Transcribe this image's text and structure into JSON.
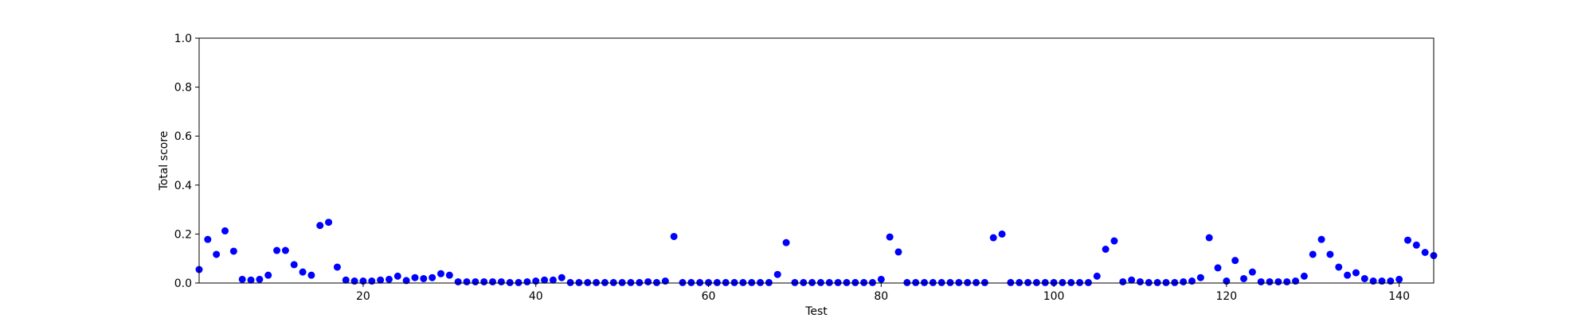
{
  "chart_data": {
    "type": "scatter",
    "title": "",
    "xlabel": "Test",
    "ylabel": "Total score",
    "xlim": [
      1,
      144
    ],
    "ylim": [
      0.0,
      1.0
    ],
    "xticks": [
      20,
      40,
      60,
      80,
      100,
      120,
      140
    ],
    "yticks": [
      0.0,
      0.2,
      0.4,
      0.6,
      0.8,
      1.0
    ],
    "xtick_labels": [
      "20",
      "40",
      "60",
      "80",
      "100",
      "120",
      "140"
    ],
    "ytick_labels": [
      "0.0",
      "0.2",
      "0.4",
      "0.6",
      "0.8",
      "1.0"
    ],
    "grid": false,
    "marker_color": "#0000ff",
    "series": [
      {
        "x": [
          1,
          2,
          3,
          4,
          5,
          6,
          7,
          8,
          9,
          10,
          11,
          12,
          13,
          14,
          15,
          16,
          17,
          18,
          19,
          20,
          21,
          22,
          23,
          24,
          25,
          26,
          27,
          28,
          29,
          30,
          31,
          32,
          33,
          34,
          35,
          36,
          37,
          38,
          39,
          40,
          41,
          42,
          43,
          44,
          45,
          46,
          47,
          48,
          49,
          50,
          51,
          52,
          53,
          54,
          55,
          56,
          57,
          58,
          59,
          60,
          61,
          62,
          63,
          64,
          65,
          66,
          67,
          68,
          69,
          70,
          71,
          72,
          73,
          74,
          75,
          76,
          77,
          78,
          79,
          80,
          81,
          82,
          83,
          84,
          85,
          86,
          87,
          88,
          89,
          90,
          91,
          92,
          93,
          94,
          95,
          96,
          97,
          98,
          99,
          100,
          101,
          102,
          103,
          104,
          105,
          106,
          107,
          108,
          109,
          110,
          111,
          112,
          113,
          114,
          115,
          116,
          117,
          118,
          119,
          120,
          121,
          122,
          123,
          124,
          125,
          126,
          127,
          128,
          129,
          130,
          131,
          132,
          133,
          134,
          135,
          136,
          137,
          138,
          139,
          140,
          141,
          142,
          143,
          144
        ],
        "y": [
          0.055,
          0.178,
          0.117,
          0.213,
          0.13,
          0.015,
          0.012,
          0.015,
          0.032,
          0.133,
          0.133,
          0.075,
          0.045,
          0.032,
          0.235,
          0.248,
          0.065,
          0.012,
          0.008,
          0.008,
          0.008,
          0.012,
          0.015,
          0.028,
          0.01,
          0.022,
          0.018,
          0.022,
          0.038,
          0.032,
          0.005,
          0.005,
          0.005,
          0.005,
          0.005,
          0.005,
          0.002,
          0.002,
          0.005,
          0.008,
          0.012,
          0.012,
          0.022,
          0.002,
          0.002,
          0.002,
          0.002,
          0.002,
          0.002,
          0.002,
          0.002,
          0.002,
          0.005,
          0.002,
          0.008,
          0.19,
          0.002,
          0.002,
          0.002,
          0.002,
          0.002,
          0.002,
          0.002,
          0.002,
          0.002,
          0.002,
          0.002,
          0.035,
          0.165,
          0.002,
          0.002,
          0.002,
          0.002,
          0.002,
          0.002,
          0.002,
          0.002,
          0.002,
          0.002,
          0.015,
          0.188,
          0.127,
          0.002,
          0.002,
          0.002,
          0.002,
          0.002,
          0.002,
          0.002,
          0.002,
          0.002,
          0.002,
          0.185,
          0.2,
          0.002,
          0.002,
          0.002,
          0.002,
          0.002,
          0.002,
          0.002,
          0.002,
          0.002,
          0.002,
          0.028,
          0.138,
          0.172,
          0.005,
          0.012,
          0.005,
          0.002,
          0.002,
          0.002,
          0.002,
          0.005,
          0.008,
          0.022,
          0.185,
          0.062,
          0.008,
          0.092,
          0.018,
          0.045,
          0.005,
          0.005,
          0.005,
          0.005,
          0.008,
          0.028,
          0.117,
          0.178,
          0.117,
          0.065,
          0.032,
          0.042,
          0.018,
          0.008,
          0.008,
          0.008,
          0.015,
          0.175,
          0.155,
          0.125,
          0.112
        ]
      }
    ]
  }
}
